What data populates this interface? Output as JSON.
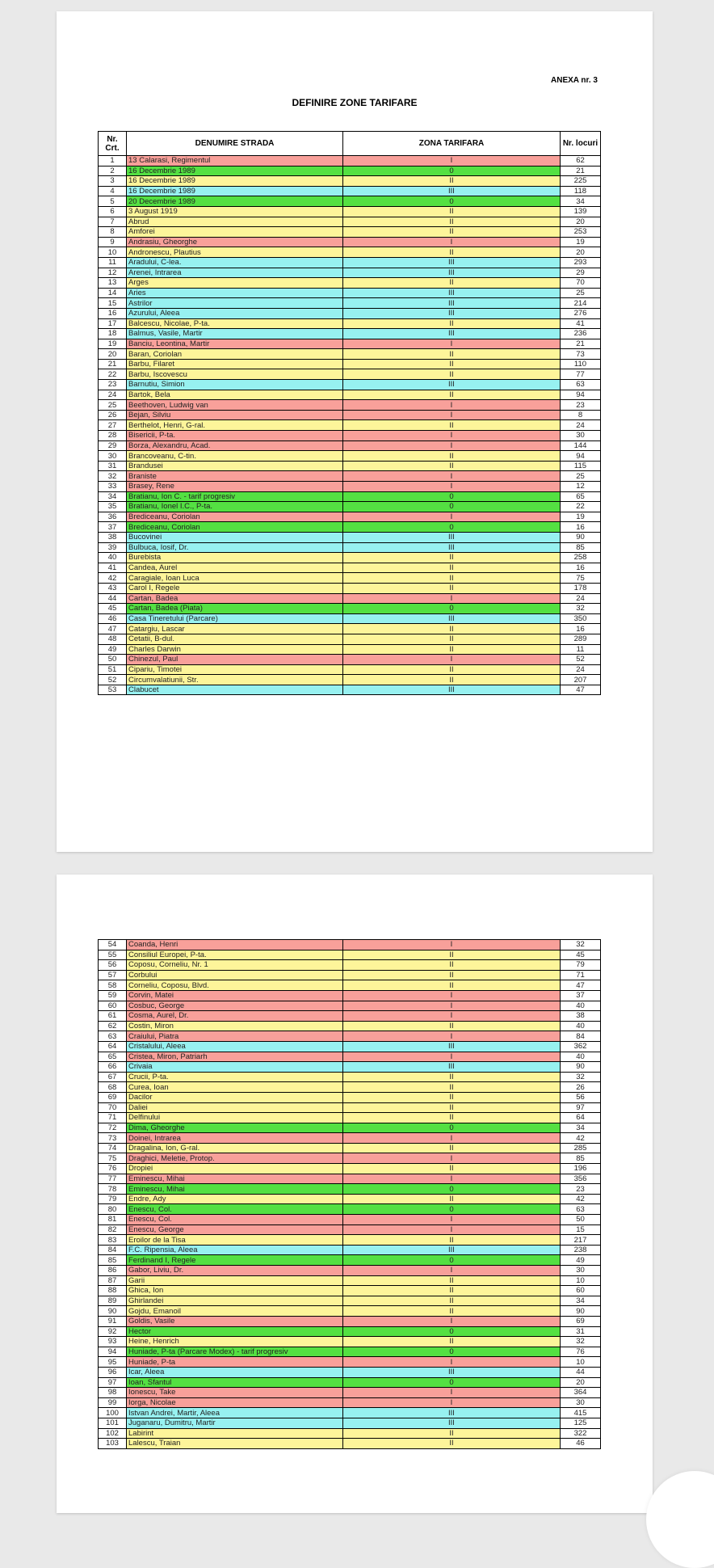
{
  "document": {
    "annex": "ANEXA nr. 3",
    "title": "DEFINIRE ZONE TARIFARE"
  },
  "table": {
    "headers": {
      "nr_line1": "Nr.",
      "nr_line2": "Crt.",
      "street": "DENUMIRE STRADA",
      "zone": "ZONA  TARIFARA",
      "places": "Nr. locuri"
    }
  },
  "zone_colors": {
    "I": "#f8a09a",
    "II": "#fdf59a",
    "III": "#97f1f0",
    "0": "#54e042"
  },
  "rows_page1": [
    [
      "1",
      "13 Calarasi, Regimentul",
      "I",
      "62"
    ],
    [
      "2",
      "16 Decembrie 1989",
      "0",
      "21"
    ],
    [
      "3",
      "16 Decembrie 1989",
      "II",
      "225"
    ],
    [
      "4",
      "16 Decembrie 1989",
      "III",
      "118"
    ],
    [
      "5",
      "20 Decembrie 1989",
      "0",
      "34"
    ],
    [
      "6",
      "3 August 1919",
      "II",
      "139"
    ],
    [
      "7",
      "Abrud",
      "II",
      "20"
    ],
    [
      "8",
      "Amforei",
      "II",
      "253"
    ],
    [
      "9",
      "Andrasiu, Gheorghe",
      "I",
      "19"
    ],
    [
      "10",
      "Andronescu, Plautius",
      "II",
      "20"
    ],
    [
      "11",
      "Aradului, C-lea.",
      "III",
      "293"
    ],
    [
      "12",
      "Arenei, Intrarea",
      "III",
      "29"
    ],
    [
      "13",
      "Arges",
      "II",
      "70"
    ],
    [
      "14",
      "Aries",
      "III",
      "25"
    ],
    [
      "15",
      "Astrilor",
      "III",
      "214"
    ],
    [
      "16",
      "Azurului, Aleea",
      "III",
      "276"
    ],
    [
      "17",
      "Balcescu, Nicolae, P-ta.",
      "II",
      "41"
    ],
    [
      "18",
      "Balmus, Vasile, Martir",
      "III",
      "236"
    ],
    [
      "19",
      "Banciu, Leontina, Martir",
      "I",
      "21"
    ],
    [
      "20",
      "Baran, Coriolan",
      "II",
      "73"
    ],
    [
      "21",
      "Barbu, Filaret",
      "II",
      "110"
    ],
    [
      "22",
      "Barbu, Iscovescu",
      "II",
      "77"
    ],
    [
      "23",
      "Barnutiu, Simion",
      "III",
      "63"
    ],
    [
      "24",
      "Bartok, Bela",
      "II",
      "94"
    ],
    [
      "25",
      "Beethoven, Ludwig van",
      "I",
      "23"
    ],
    [
      "26",
      "Bejan, Silviu",
      "I",
      "8"
    ],
    [
      "27",
      "Berthelot, Henri, G-ral.",
      "II",
      "24"
    ],
    [
      "28",
      "Bisericii, P-ta.",
      "I",
      "30"
    ],
    [
      "29",
      "Borza, Alexandru, Acad.",
      "I",
      "144"
    ],
    [
      "30",
      "Brancoveanu, C-tin.",
      "II",
      "94"
    ],
    [
      "31",
      "Brandusei",
      "II",
      "115"
    ],
    [
      "32",
      "Braniste",
      "I",
      "25"
    ],
    [
      "33",
      "Brasey, Rene",
      "I",
      "12"
    ],
    [
      "34",
      "Bratianu, Ion C.  - tarif progresiv",
      "0",
      "65"
    ],
    [
      "35",
      "Bratianu, Ionel I.C., P-ta.",
      "0",
      "22"
    ],
    [
      "36",
      "Brediceanu, Coriolan",
      "I",
      "19"
    ],
    [
      "37",
      "Brediceanu, Coriolan",
      "0",
      "16"
    ],
    [
      "38",
      "Bucovinei",
      "III",
      "90"
    ],
    [
      "39",
      "Bulbuca, Iosif, Dr.",
      "III",
      "85"
    ],
    [
      "40",
      "Burebista",
      "II",
      "258"
    ],
    [
      "41",
      "Candea, Aurel",
      "II",
      "16"
    ],
    [
      "42",
      "Caragiale, Ioan Luca",
      "II",
      "75"
    ],
    [
      "43",
      "Carol I, Regele",
      "II",
      "178"
    ],
    [
      "44",
      "Cartan, Badea",
      "I",
      "24"
    ],
    [
      "45",
      "Cartan, Badea (Piata)",
      "0",
      "32"
    ],
    [
      "46",
      "Casa Tineretului (Parcare)",
      "III",
      "350"
    ],
    [
      "47",
      "Catargiu, Lascar",
      "II",
      "16"
    ],
    [
      "48",
      "Cetatii, B-dul.",
      "II",
      "289"
    ],
    [
      "49",
      "Charles Darwin",
      "II",
      "11"
    ],
    [
      "50",
      "Chinezul, Paul",
      "I",
      "52"
    ],
    [
      "51",
      "Cipariu, Timotei",
      "II",
      "24"
    ],
    [
      "52",
      "Circumvalatiunii, Str.",
      "II",
      "207"
    ],
    [
      "53",
      "Clabucet",
      "III",
      "47"
    ]
  ],
  "rows_page2": [
    [
      "54",
      "Coanda, Henri",
      "I",
      "32"
    ],
    [
      "55",
      "Consiliul Europei, P-ta.",
      "II",
      "45"
    ],
    [
      "56",
      "Coposu, Corneliu, Nr. 1",
      "II",
      "79"
    ],
    [
      "57",
      "Corbului",
      "II",
      "71"
    ],
    [
      "58",
      "Corneliu, Coposu, Blvd.",
      "II",
      "47"
    ],
    [
      "59",
      "Corvin, Matei",
      "I",
      "37"
    ],
    [
      "60",
      "Cosbuc, George",
      "I",
      "40"
    ],
    [
      "61",
      "Cosma, Aurel, Dr.",
      "I",
      "38"
    ],
    [
      "62",
      "Costin, Miron",
      "II",
      "40"
    ],
    [
      "63",
      "Craiului, Piatra",
      "I",
      "84"
    ],
    [
      "64",
      "Cristalului, Aleea",
      "III",
      "362"
    ],
    [
      "65",
      "Cristea, Miron, Patriarh",
      "I",
      "40"
    ],
    [
      "66",
      "Crivaia",
      "III",
      "90"
    ],
    [
      "67",
      "Crucii, P-ta.",
      "II",
      "32"
    ],
    [
      "68",
      "Curea, Ioan",
      "II",
      "26"
    ],
    [
      "69",
      "Dacilor",
      "II",
      "56"
    ],
    [
      "70",
      "Daliei",
      "II",
      "97"
    ],
    [
      "71",
      "Delfinului",
      "II",
      "64"
    ],
    [
      "72",
      "Dima, Gheorghe",
      "0",
      "34"
    ],
    [
      "73",
      "Doinei, Intrarea",
      "I",
      "42"
    ],
    [
      "74",
      "Dragalina, Ion, G-ral.",
      "II",
      "285"
    ],
    [
      "75",
      "Draghici, Meletie, Protop.",
      "I",
      "85"
    ],
    [
      "76",
      "Dropiei",
      "II",
      "196"
    ],
    [
      "77",
      "Eminescu, Mihai",
      "I",
      "356"
    ],
    [
      "78",
      "Eminescu, Mihai",
      "0",
      "23"
    ],
    [
      "79",
      "Endre, Ady",
      "II",
      "42"
    ],
    [
      "80",
      "Enescu, Col.",
      "0",
      "63"
    ],
    [
      "81",
      "Enescu, Col.",
      "I",
      "50"
    ],
    [
      "82",
      "Enescu, George",
      "I",
      "15"
    ],
    [
      "83",
      "Eroilor de la Tisa",
      "II",
      "217"
    ],
    [
      "84",
      "F.C. Ripensia, Aleea",
      "III",
      "238"
    ],
    [
      "85",
      "Ferdinand I, Regele",
      "0",
      "49"
    ],
    [
      "86",
      "Gabor, Liviu, Dr.",
      "I",
      "30"
    ],
    [
      "87",
      "Garii",
      "II",
      "10"
    ],
    [
      "88",
      "Ghica, Ion",
      "II",
      "60"
    ],
    [
      "89",
      "Ghirlandei",
      "II",
      "34"
    ],
    [
      "90",
      "Gojdu, Emanoil",
      "II",
      "90"
    ],
    [
      "91",
      "Goldis, Vasile",
      "I",
      "69"
    ],
    [
      "92",
      "Hector",
      "0",
      "31"
    ],
    [
      "93",
      "Heine, Henrich",
      "II",
      "32"
    ],
    [
      "94",
      "Huniade, P-ta (Parcare Modex)  - tarif progresiv",
      "0",
      "76"
    ],
    [
      "95",
      "Huniade, P-ta",
      "I",
      "10"
    ],
    [
      "96",
      "Icar, Aleea",
      "III",
      "44"
    ],
    [
      "97",
      "Ioan, Sfantul",
      "0",
      "20"
    ],
    [
      "98",
      "Ionescu, Take",
      "I",
      "364"
    ],
    [
      "99",
      "Iorga, Nicolae",
      "I",
      "30"
    ],
    [
      "100",
      "Istvan Andrei, Martir, Aleea",
      "III",
      "415"
    ],
    [
      "101",
      "Juganaru, Dumitru, Martir",
      "III",
      "125"
    ],
    [
      "102",
      "Labirint",
      "II",
      "322"
    ],
    [
      "103",
      "Lalescu, Traian",
      "II",
      "46"
    ]
  ]
}
